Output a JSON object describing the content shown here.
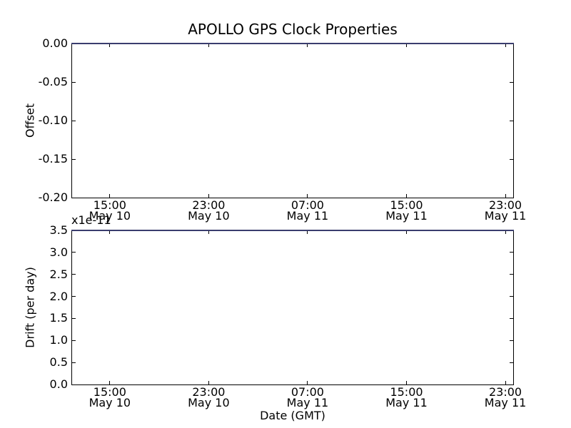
{
  "figure": {
    "background_color": "#ffffff",
    "axes_frame_color": "#000000",
    "text_color": "#000000",
    "series_line_render_color": "#3a3d6e"
  },
  "chart_data": [
    {
      "type": "line",
      "title": "APOLLO GPS Clock Properties",
      "ylabel": "Offset",
      "xlabel": "",
      "ylim": [
        -0.2,
        0.0
      ],
      "ytick_labels": [
        "0.00",
        "-0.05",
        "-0.10",
        "-0.15",
        "-0.20"
      ],
      "xticks": [
        {
          "time": "15:00",
          "date": "May 10",
          "frac": 0.0855
        },
        {
          "time": "23:00",
          "date": "May 10",
          "frac": 0.3097
        },
        {
          "time": "07:00",
          "date": "May 11",
          "frac": 0.5339
        },
        {
          "time": "15:00",
          "date": "May 11",
          "frac": 0.7581
        },
        {
          "time": "23:00",
          "date": "May 11",
          "frac": 0.9823
        }
      ],
      "grid": false,
      "legend": "none",
      "series": [
        {
          "name": "offset",
          "color": "#0000ff",
          "shape": "constant horizontal line at top edge",
          "y_constant": 0.0
        }
      ]
    },
    {
      "type": "line",
      "title": "",
      "ylabel": "Drift (per day)",
      "xlabel": "Date (GMT)",
      "y_offset_text": "x1e-11",
      "ylim": [
        0.0,
        3.5e-11
      ],
      "ytick_labels": [
        "3.5",
        "3.0",
        "2.5",
        "2.0",
        "1.5",
        "1.0",
        "0.5",
        "0.0"
      ],
      "xticks": [
        {
          "time": "15:00",
          "date": "May 10",
          "frac": 0.0855
        },
        {
          "time": "23:00",
          "date": "May 10",
          "frac": 0.3097
        },
        {
          "time": "07:00",
          "date": "May 11",
          "frac": 0.5339
        },
        {
          "time": "15:00",
          "date": "May 11",
          "frac": 0.7581
        },
        {
          "time": "23:00",
          "date": "May 11",
          "frac": 0.9823
        }
      ],
      "grid": false,
      "legend": "none",
      "series": [
        {
          "name": "drift",
          "color": "#0000ff",
          "shape": "constant horizontal line at top edge",
          "y_constant": 3.5e-11
        }
      ]
    }
  ]
}
